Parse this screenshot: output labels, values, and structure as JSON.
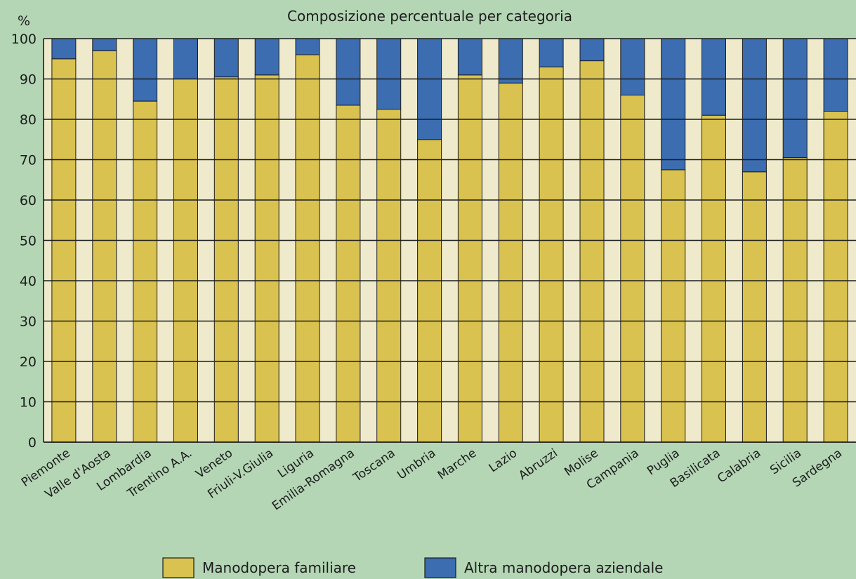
{
  "chart_data": {
    "type": "bar",
    "stacked": true,
    "title": "Composizione percentuale per categoria",
    "ylabel": "%",
    "xlabel": "",
    "ylim": [
      0,
      100
    ],
    "yticks": [
      0,
      10,
      20,
      30,
      40,
      50,
      60,
      70,
      80,
      90,
      100
    ],
    "grid": "horizontal",
    "categories": [
      "Piemonte",
      "Valle d'Aosta",
      "Lombardia",
      "Trentino A.A.",
      "Veneto",
      "Friuli-V.Giulia",
      "Liguria",
      "Emilia-Romagna",
      "Toscana",
      "Umbria",
      "Marche",
      "Lazio",
      "Abruzzi",
      "Molise",
      "Campania",
      "Puglia",
      "Basilicata",
      "Calabria",
      "Sicilia",
      "Sardegna"
    ],
    "series": [
      {
        "name": "Manodopera familiare",
        "color": "#d9c24f",
        "values": [
          95,
          97,
          84.5,
          90,
          90.5,
          91,
          96,
          83.5,
          82.5,
          75,
          91,
          89,
          93,
          94.5,
          86,
          67.5,
          81,
          67,
          70.5,
          82
        ]
      },
      {
        "name": "Altra manodopera aziendale",
        "color": "#3b6db0",
        "values": [
          5,
          3,
          15.5,
          10,
          9.5,
          9,
          4,
          16.5,
          17.5,
          25,
          9,
          11,
          7,
          5.5,
          14,
          32.5,
          19,
          33,
          29.5,
          18
        ]
      }
    ],
    "legend_position": "bottom-center"
  }
}
